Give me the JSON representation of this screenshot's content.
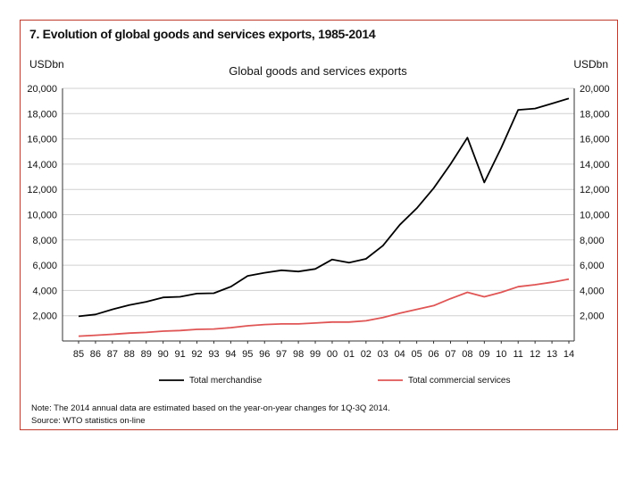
{
  "figure": {
    "title": "7. Evolution of global goods and services exports, 1985-2014",
    "unit_left": "USDbn",
    "unit_right": "USDbn",
    "note": "Note: The 2014 annual data are estimated based on the year-on-year changes for 1Q-3Q 2014.",
    "source": "Source: WTO statistics on-line",
    "border_color": "#c0392b"
  },
  "chart_data": {
    "type": "line",
    "title": "Global goods and services exports",
    "xlabel": "",
    "ylabel": "USDbn",
    "categories": [
      "85",
      "86",
      "87",
      "88",
      "89",
      "90",
      "91",
      "92",
      "93",
      "94",
      "95",
      "96",
      "97",
      "98",
      "99",
      "00",
      "01",
      "02",
      "03",
      "04",
      "05",
      "06",
      "07",
      "08",
      "09",
      "10",
      "11",
      "12",
      "13",
      "14"
    ],
    "ylim": [
      0,
      20000
    ],
    "yticks": [
      2000,
      4000,
      6000,
      8000,
      10000,
      12000,
      14000,
      16000,
      18000,
      20000
    ],
    "ytick_labels": [
      "2,000",
      "4,000",
      "6,000",
      "8,000",
      "10,000",
      "12,000",
      "14,000",
      "16,000",
      "18,000",
      "20,000"
    ],
    "grid": true,
    "legend_position": "bottom",
    "series": [
      {
        "name": "Total merchandise",
        "color": "#000000",
        "values": [
          1950,
          2100,
          2500,
          2850,
          3100,
          3450,
          3500,
          3750,
          3780,
          4300,
          5150,
          5400,
          5600,
          5500,
          5700,
          6450,
          6200,
          6500,
          7550,
          9200,
          10500,
          12100,
          14000,
          16100,
          12550,
          15300,
          18300,
          18400,
          18800,
          19200
        ]
      },
      {
        "name": "Total commercial services",
        "color": "#e05555",
        "values": [
          380,
          450,
          530,
          620,
          680,
          780,
          830,
          920,
          950,
          1050,
          1200,
          1300,
          1350,
          1350,
          1420,
          1500,
          1500,
          1600,
          1850,
          2200,
          2500,
          2800,
          3350,
          3850,
          3500,
          3850,
          4300,
          4450,
          4650,
          4900
        ]
      }
    ]
  }
}
